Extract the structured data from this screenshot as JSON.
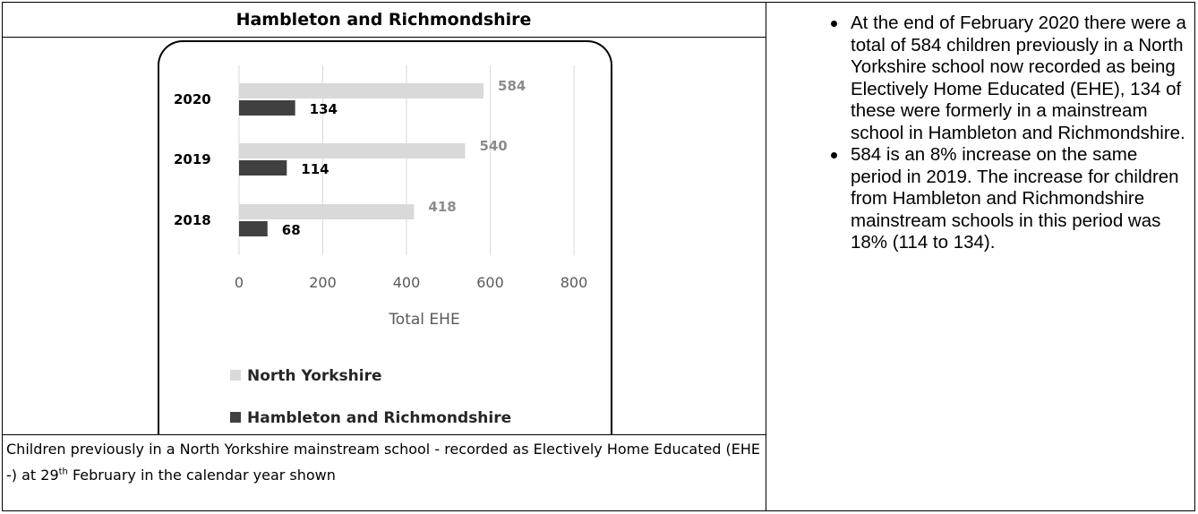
{
  "left_panel": {
    "title": "Hambleton and Richmondshire",
    "caption_part1": "Children previously in a North Yorkshire mainstream school - recorded as Electively Home Educated (EHE -) at 29",
    "caption_sup": "th",
    "caption_part2": " February  in the calendar year shown"
  },
  "chart_data": {
    "type": "bar",
    "orientation": "horizontal",
    "categories": [
      "2020",
      "2019",
      "2018"
    ],
    "series": [
      {
        "name": "North Yorkshire",
        "values": [
          584,
          540,
          418
        ],
        "color": "#d9d9d9",
        "label_color": "#8c8c8c"
      },
      {
        "name": "Hambleton and Richmondshire",
        "values": [
          134,
          114,
          68
        ],
        "color": "#404040",
        "label_color": "#000000"
      }
    ],
    "xlabel": "Total EHE",
    "xlim": [
      0,
      800
    ],
    "xticks": [
      0,
      200,
      400,
      600,
      800
    ],
    "grid": true,
    "legend_position": "bottom"
  },
  "right_panel": {
    "bullets": [
      "At the end of February 2020 there were a total of 584 children previously in a North Yorkshire school now recorded as being Electively Home Educated (EHE), 134 of these were formerly in a mainstream school in Hambleton and Richmondshire.",
      "584 is an 8% increase on the same period in 2019. The increase for children from Hambleton and Richmondshire mainstream schools in this period was 18% (114 to 134)."
    ]
  }
}
